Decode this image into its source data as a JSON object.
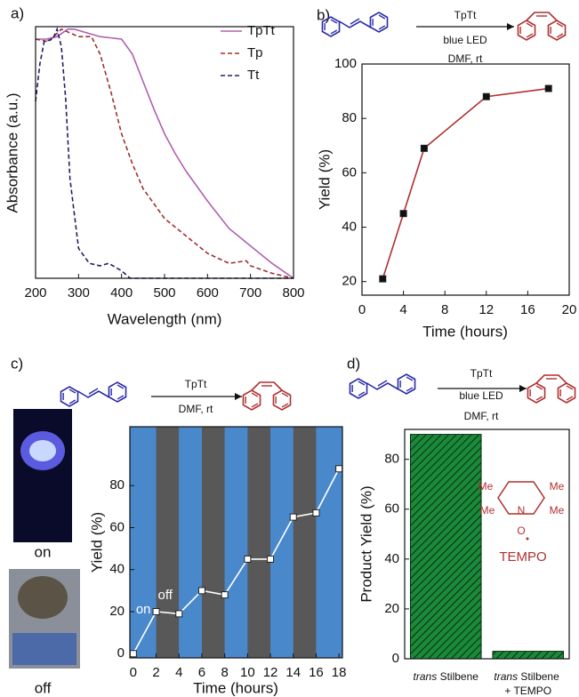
{
  "chart_data": [
    {
      "type": "line",
      "panel_label": "a)",
      "xlabel": "Wavelength (nm)",
      "ylabel": "Absorbance (a.u.)",
      "xlim": [
        200,
        800
      ],
      "xticks": [
        200,
        300,
        400,
        500,
        600,
        700,
        800
      ],
      "ylim": [
        0,
        1.01
      ],
      "legend": "upper right",
      "series": [
        {
          "name": "TpTt",
          "color": "#b060b0",
          "dash": false,
          "x": [
            200,
            225,
            250,
            275,
            290,
            310,
            350,
            400,
            425,
            450,
            475,
            500,
            525,
            550,
            600,
            650,
            700,
            750,
            800
          ],
          "values": [
            0.96,
            0.96,
            0.97,
            1.0,
            1.0,
            0.99,
            0.97,
            0.96,
            0.9,
            0.79,
            0.68,
            0.58,
            0.5,
            0.43,
            0.31,
            0.2,
            0.13,
            0.06,
            0.0
          ]
        },
        {
          "name": "Tp",
          "color": "#a03030",
          "dash": true,
          "x": [
            200,
            230,
            260,
            300,
            330,
            350,
            375,
            400,
            425,
            450,
            500,
            550,
            600,
            650,
            690,
            700,
            750,
            800
          ],
          "values": [
            0.96,
            0.95,
            1.0,
            0.97,
            0.97,
            0.9,
            0.75,
            0.58,
            0.46,
            0.36,
            0.24,
            0.17,
            0.1,
            0.06,
            0.07,
            0.05,
            0.02,
            0.0
          ]
        },
        {
          "name": "Tt",
          "color": "#20206a",
          "dash": true,
          "x": [
            200,
            210,
            220,
            240,
            250,
            260,
            270,
            280,
            300,
            325,
            350,
            370,
            400,
            420,
            500,
            600,
            700,
            800
          ],
          "values": [
            0.71,
            0.86,
            0.95,
            0.96,
            1.0,
            0.93,
            0.72,
            0.4,
            0.12,
            0.06,
            0.05,
            0.06,
            0.03,
            0.0,
            0.0,
            0.0,
            0.0,
            0.0
          ]
        }
      ]
    },
    {
      "type": "line",
      "panel_label": "b)",
      "scheme": [
        "TpTt",
        "blue LED",
        "DMF, rt"
      ],
      "xlabel": "Time (hours)",
      "ylabel": "Yield (%)",
      "xlim": [
        0,
        20
      ],
      "xticks": [
        0,
        4,
        8,
        12,
        16,
        20
      ],
      "ylim": [
        15,
        100
      ],
      "yticks": [
        20,
        40,
        60,
        80,
        100
      ],
      "markers": "square",
      "series": [
        {
          "color": "#b03030",
          "marker_color": "#111111",
          "x": [
            2,
            4,
            6,
            12,
            18
          ],
          "values": [
            21,
            45,
            69,
            88,
            91
          ]
        }
      ]
    },
    {
      "type": "line",
      "panel_label": "c)",
      "scheme": [
        "TpTt",
        "DMF, rt"
      ],
      "xlabel": "Time (hours)",
      "ylabel": "Yield (%)",
      "photo_labels": [
        "on",
        "off"
      ],
      "annotations": [
        "on",
        "off"
      ],
      "band_colors": [
        "#4a88cc",
        "#585858"
      ],
      "xlim": [
        -0.3,
        18.3
      ],
      "xticks": [
        0,
        2,
        4,
        6,
        8,
        10,
        12,
        14,
        16,
        18
      ],
      "ylim": [
        -2,
        108
      ],
      "yticks": [
        0,
        20,
        40,
        60,
        80
      ],
      "markers": "square",
      "series": [
        {
          "color": "#ffffff",
          "marker_color": "#ffffff",
          "x": [
            0,
            2,
            4,
            6,
            8,
            10,
            12,
            14,
            16,
            18
          ],
          "values": [
            0,
            20,
            19,
            30,
            28,
            45,
            45,
            65,
            67,
            88
          ]
        }
      ]
    },
    {
      "type": "bar",
      "panel_label": "d)",
      "scheme": [
        "TpTt",
        "blue LED",
        "DMF, rt"
      ],
      "ylabel": "Product Yield (%)",
      "structure_labels": [
        "Me",
        "Me",
        "N",
        "Me",
        "Me",
        "O",
        "TEMPO"
      ],
      "categories": [
        "trans Stilbene",
        "trans Stilbene + TEMPO"
      ],
      "values": [
        90,
        3
      ],
      "color": "#1a8a3a",
      "hatch": true,
      "ylim": [
        0,
        92
      ],
      "yticks": [
        0,
        20,
        40,
        60,
        80
      ]
    }
  ]
}
